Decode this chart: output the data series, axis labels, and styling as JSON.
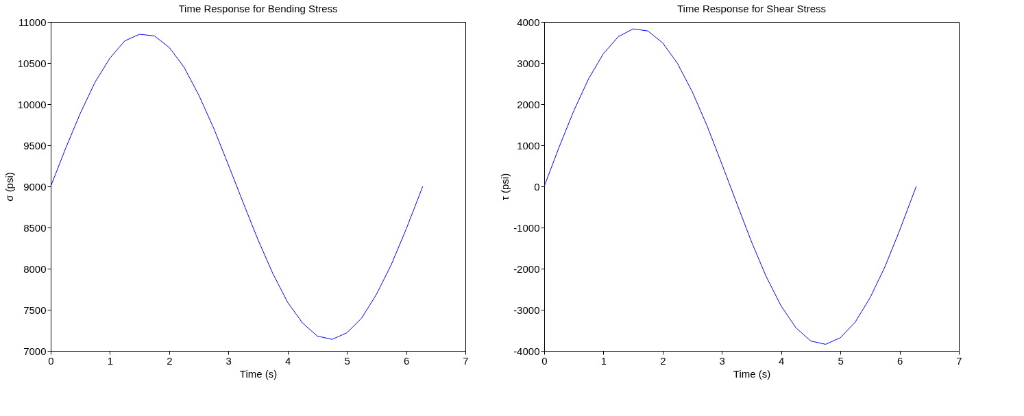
{
  "chart_data": [
    {
      "type": "line",
      "title": "Time Response for Bending Stress",
      "xlabel": "Time (s)",
      "ylabel": "σ (psi)",
      "x": [
        0,
        0.25,
        0.5,
        0.75,
        1.0,
        1.25,
        1.5,
        1.75,
        2.0,
        2.25,
        2.5,
        2.75,
        3.0,
        3.25,
        3.5,
        3.75,
        4.0,
        4.25,
        4.5,
        4.75,
        5.0,
        5.25,
        5.5,
        5.75,
        6.0,
        6.28
      ],
      "series": [
        {
          "color": "#0000ff",
          "values": [
            9000,
            9460,
            9890,
            10270,
            10560,
            10770,
            10850,
            10830,
            10690,
            10450,
            10110,
            9710,
            9260,
            8800,
            8350,
            7940,
            7590,
            7340,
            7180,
            7140,
            7220,
            7400,
            7690,
            8050,
            8480,
            9000
          ]
        }
      ],
      "xlim": [
        0,
        7
      ],
      "xticks": [
        0,
        1,
        2,
        3,
        4,
        5,
        6,
        7
      ],
      "ylim": [
        7000,
        11000
      ],
      "yticks": [
        7000,
        7500,
        8000,
        8500,
        9000,
        9500,
        10000,
        10500,
        11000
      ],
      "grid": false
    },
    {
      "type": "line",
      "title": "Time Response for Shear Stress",
      "xlabel": "Time (s)",
      "ylabel": "τ (psi)",
      "x": [
        0,
        0.25,
        0.5,
        0.75,
        1.0,
        1.25,
        1.5,
        1.75,
        2.0,
        2.25,
        2.5,
        2.75,
        3.0,
        3.25,
        3.5,
        3.75,
        4.0,
        4.25,
        4.5,
        4.75,
        5.0,
        5.25,
        5.5,
        5.75,
        6.0,
        6.28
      ],
      "series": [
        {
          "color": "#0000ff",
          "values": [
            0,
            950,
            1840,
            2620,
            3230,
            3640,
            3830,
            3780,
            3490,
            2990,
            2300,
            1470,
            540,
            -410,
            -1350,
            -2200,
            -2910,
            -3440,
            -3760,
            -3840,
            -3680,
            -3300,
            -2710,
            -1960,
            -1070,
            0
          ]
        }
      ],
      "xlim": [
        0,
        7
      ],
      "xticks": [
        0,
        1,
        2,
        3,
        4,
        5,
        6,
        7
      ],
      "ylim": [
        -4000,
        4000
      ],
      "yticks": [
        -4000,
        -3000,
        -2000,
        -1000,
        0,
        1000,
        2000,
        3000,
        4000
      ],
      "grid": false
    }
  ]
}
